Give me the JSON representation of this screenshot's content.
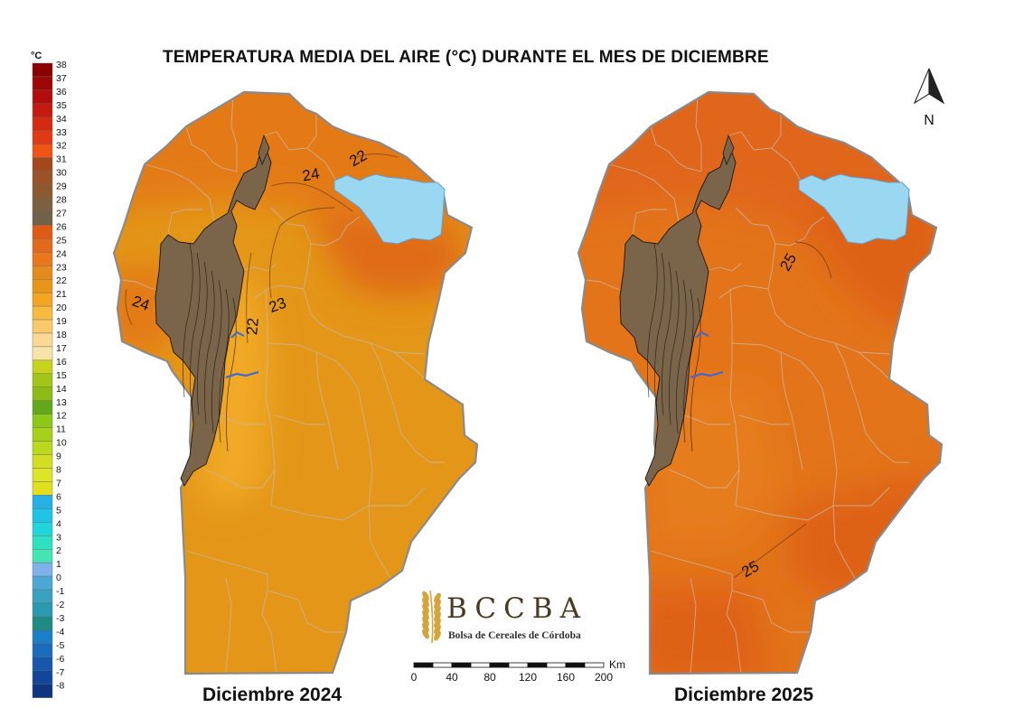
{
  "title": "TEMPERATURA MEDIA DEL AIRE (°C) DURANTE EL MES DE DICIEMBRE",
  "legend": {
    "unit": "°C",
    "steps": [
      {
        "label": "38",
        "color": "#8b0000"
      },
      {
        "label": "37",
        "color": "#9e0606"
      },
      {
        "label": "36",
        "color": "#b20c0c"
      },
      {
        "label": "35",
        "color": "#c41a10"
      },
      {
        "label": "34",
        "color": "#d42a12"
      },
      {
        "label": "33",
        "color": "#e03a14"
      },
      {
        "label": "32",
        "color": "#ee5416"
      },
      {
        "label": "31",
        "color": "#a5471c"
      },
      {
        "label": "30",
        "color": "#9a5326"
      },
      {
        "label": "29",
        "color": "#8c5a2e"
      },
      {
        "label": "28",
        "color": "#7d6040"
      },
      {
        "label": "27",
        "color": "#6f6249"
      },
      {
        "label": "26",
        "color": "#df5a14"
      },
      {
        "label": "25",
        "color": "#e3691a"
      },
      {
        "label": "24",
        "color": "#e8771e"
      },
      {
        "label": "23",
        "color": "#e58a1c"
      },
      {
        "label": "22",
        "color": "#e8961a"
      },
      {
        "label": "21",
        "color": "#f4a622"
      },
      {
        "label": "20",
        "color": "#f7bb40"
      },
      {
        "label": "19",
        "color": "#f9c96a"
      },
      {
        "label": "18",
        "color": "#fbd994"
      },
      {
        "label": "17",
        "color": "#f8e4a8"
      },
      {
        "label": "16",
        "color": "#c7d41c"
      },
      {
        "label": "15",
        "color": "#a2c618"
      },
      {
        "label": "14",
        "color": "#8dbc16"
      },
      {
        "label": "13",
        "color": "#61a81a"
      },
      {
        "label": "12",
        "color": "#8dc816"
      },
      {
        "label": "11",
        "color": "#a6d01a"
      },
      {
        "label": "10",
        "color": "#bcd81c"
      },
      {
        "label": "9",
        "color": "#d2de22"
      },
      {
        "label": "8",
        "color": "#dde624"
      },
      {
        "label": "7",
        "color": "#e0e020"
      },
      {
        "label": "6",
        "color": "#26b0e6"
      },
      {
        "label": "5",
        "color": "#1fc4e6"
      },
      {
        "label": "4",
        "color": "#20d6dc"
      },
      {
        "label": "3",
        "color": "#30e0c2"
      },
      {
        "label": "2",
        "color": "#44e4b4"
      },
      {
        "label": "1",
        "color": "#7db3ea"
      },
      {
        "label": "0",
        "color": "#4ba8d4"
      },
      {
        "label": "-1",
        "color": "#38a2bf"
      },
      {
        "label": "-2",
        "color": "#2a9ab0"
      },
      {
        "label": "-3",
        "color": "#1e8c82"
      },
      {
        "label": "-4",
        "color": "#1c7ec4"
      },
      {
        "label": "-5",
        "color": "#1a6cbc"
      },
      {
        "label": "-6",
        "color": "#1758ac"
      },
      {
        "label": "-7",
        "color": "#134598"
      },
      {
        "label": "-8",
        "color": "#0f3480"
      }
    ]
  },
  "maps": [
    {
      "label": "Diciembre 2024",
      "base_color": "#e39618",
      "north_color": "#e37a16",
      "warm_color": "#e06a12",
      "cool_color": "#f2aa26",
      "isotherms": [
        "22",
        "24",
        "24",
        "23",
        "22"
      ]
    },
    {
      "label": "Diciembre 2025",
      "base_color": "#e3741a",
      "north_color": "#e0661a",
      "warm_color": "#de6212",
      "cool_color": "#e67d1c",
      "isotherms": [
        "25",
        "25"
      ]
    }
  ],
  "sierras_color": "#7a654a",
  "lake_color": "#99d8f0",
  "north_arrow": {
    "label": "N"
  },
  "scale_bar": {
    "unit": "Km",
    "ticks": [
      "0",
      "40",
      "80",
      "120",
      "160",
      "200"
    ]
  },
  "brand": {
    "name": "BCCBA",
    "subtitle": "Bolsa de Cereales de Córdoba",
    "color": "#4a3a22",
    "leaf_color": "#d6a43c"
  }
}
